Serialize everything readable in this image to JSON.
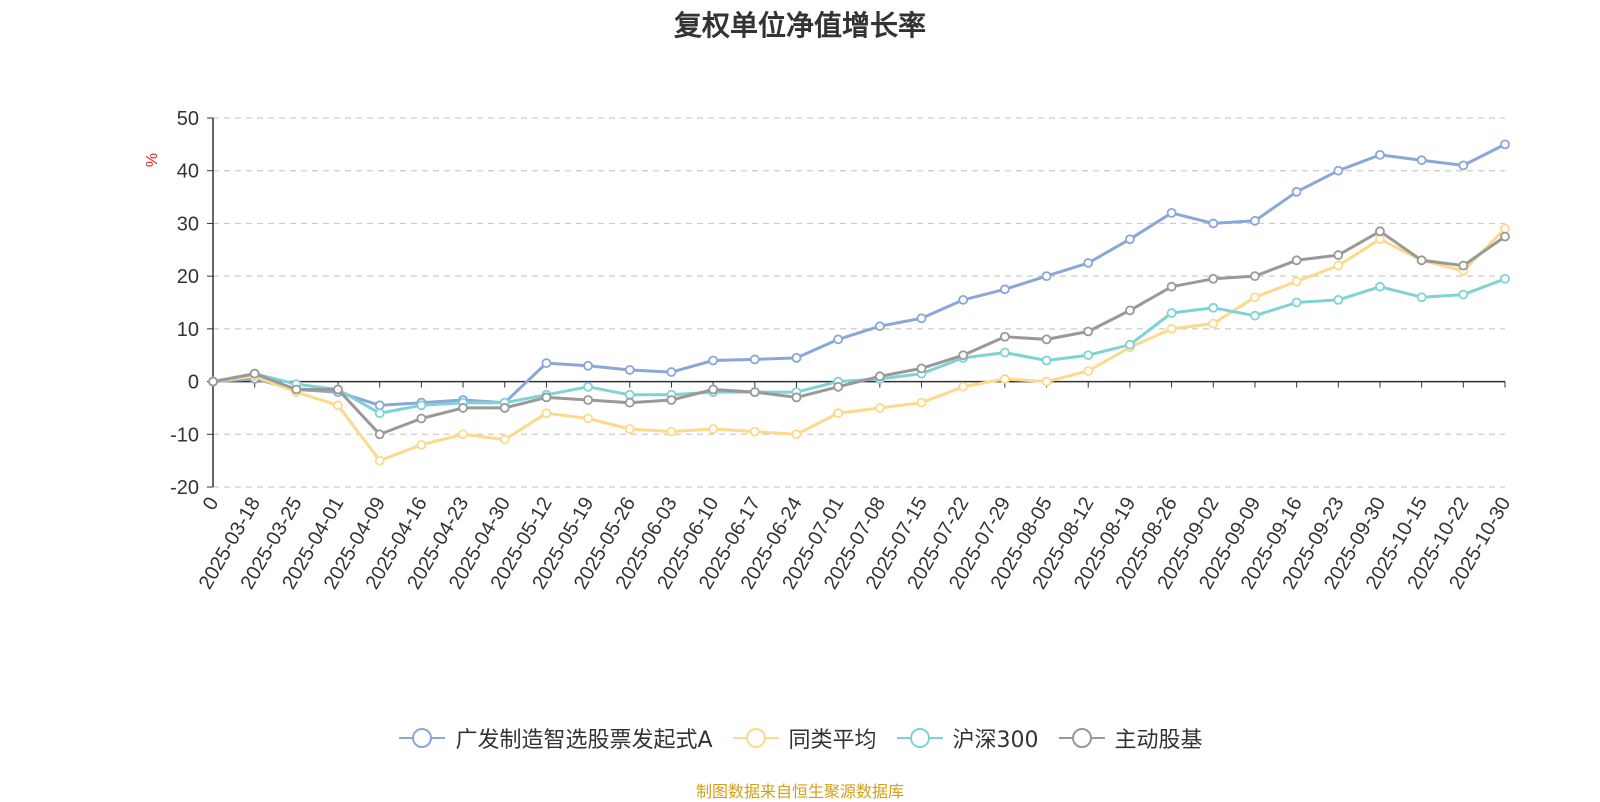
{
  "chart_data": {
    "type": "line",
    "title": "复权单位净值增长率",
    "ylabel": "%",
    "xlabel": "",
    "ylim": [
      -20,
      50
    ],
    "yticks": [
      -20,
      -10,
      0,
      10,
      20,
      30,
      40,
      50
    ],
    "grid": true,
    "legend_position": "bottom",
    "categories": [
      "0",
      "2025-03-18",
      "2025-03-25",
      "2025-04-01",
      "2025-04-09",
      "2025-04-16",
      "2025-04-23",
      "2025-04-30",
      "2025-05-12",
      "2025-05-19",
      "2025-05-26",
      "2025-06-03",
      "2025-06-10",
      "2025-06-17",
      "2025-06-24",
      "2025-07-01",
      "2025-07-08",
      "2025-07-15",
      "2025-07-22",
      "2025-07-29",
      "2025-08-05",
      "2025-08-12",
      "2025-08-19",
      "2025-08-26",
      "2025-09-02",
      "2025-09-09",
      "2025-09-16",
      "2025-09-23",
      "2025-09-30",
      "2025-10-15",
      "2025-10-22",
      "2025-10-30"
    ],
    "series": [
      {
        "name": "广发制造智选股票发起式A",
        "color": "#8aa7d9",
        "values": [
          0,
          0.5,
          -1.5,
          -2,
          -4.5,
          -4,
          -3.5,
          -4,
          3.5,
          3,
          2.2,
          1.8,
          4,
          4.2,
          4.5,
          8,
          10.5,
          12,
          15.5,
          17.5,
          20,
          22.5,
          27,
          32,
          30,
          30.5,
          36,
          40,
          43,
          42,
          41,
          45
        ]
      },
      {
        "name": "同类平均",
        "color": "#fcd98b",
        "values": [
          0,
          1,
          -2,
          -4.5,
          -15,
          -12,
          -10,
          -11,
          -6,
          -7,
          -9,
          -9.5,
          -9,
          -9.5,
          -10,
          -6,
          -5,
          -4,
          -1,
          0.5,
          0,
          2,
          6.5,
          10,
          11,
          16,
          19,
          22,
          27,
          23,
          21,
          29
        ]
      },
      {
        "name": "沪深300",
        "color": "#7fd3d6",
        "values": [
          0,
          1.5,
          -0.5,
          -1.5,
          -6,
          -4.5,
          -4,
          -4,
          -2.5,
          -1,
          -2.5,
          -2.5,
          -2,
          -2,
          -2,
          0,
          0.5,
          1.5,
          4.5,
          5.5,
          4,
          5,
          7,
          13,
          14,
          12.5,
          15,
          15.5,
          18,
          16,
          16.5,
          19.5
        ]
      },
      {
        "name": "主动股基",
        "color": "#999999",
        "values": [
          0,
          1.5,
          -1.5,
          -1.5,
          -10,
          -7,
          -5,
          -5,
          -3,
          -3.5,
          -4,
          -3.5,
          -1.5,
          -2,
          -3,
          -1,
          1,
          2.5,
          5,
          8.5,
          8,
          9.5,
          13.5,
          18,
          19.5,
          20,
          23,
          24,
          28.5,
          23,
          22,
          27.5
        ]
      }
    ]
  },
  "source_text": "制图数据来自恒生聚源数据库",
  "source_color": "#d4a017"
}
